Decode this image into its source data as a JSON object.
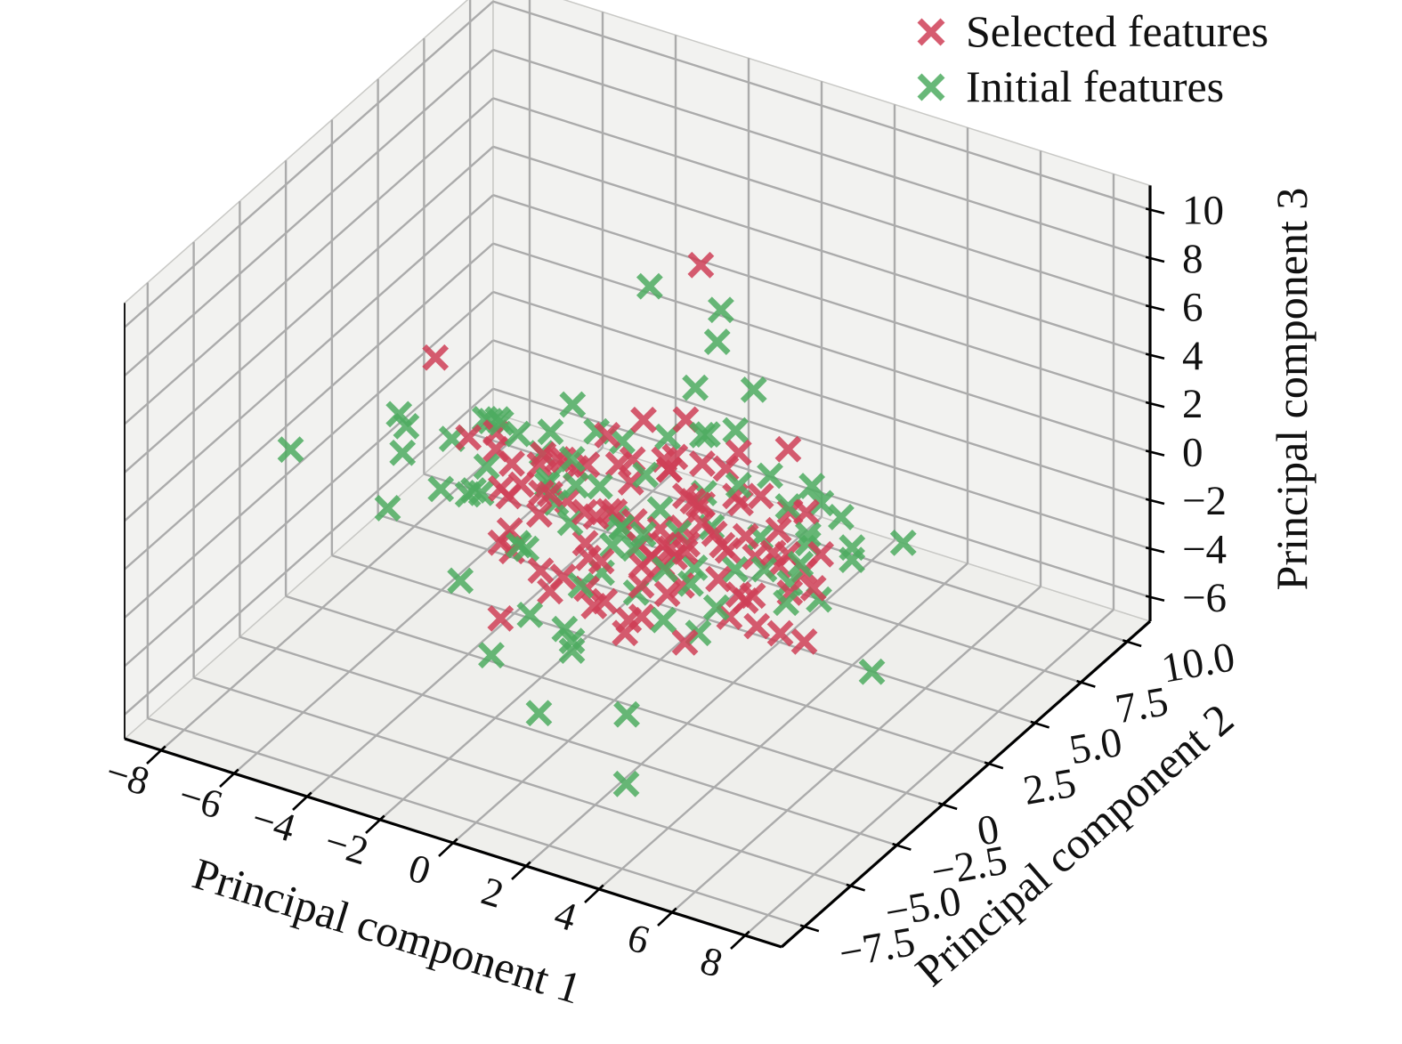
{
  "figure": {
    "background": "#ffffff"
  },
  "chart_data": {
    "type": "scatter",
    "projection": "3d",
    "title": "",
    "xlabel": "Principal component 1",
    "ylabel": "Principal component 2",
    "zlabel": "Principal component 3",
    "xlim": [
      -9,
      9
    ],
    "ylim": [
      -8.75,
      11.25
    ],
    "zlim": [
      -7,
      11
    ],
    "grid": true,
    "legend_position": "upper right",
    "xticks": {
      "values": [
        -8,
        -6,
        -4,
        -2,
        0,
        2,
        4,
        6,
        8
      ],
      "labels": [
        "−8",
        "−6",
        "−4",
        "−2",
        "0",
        "2",
        "4",
        "6",
        "8"
      ]
    },
    "yticks": {
      "values": [
        -7.5,
        -5,
        -2.5,
        0,
        2.5,
        5,
        7.5,
        10
      ],
      "labels": [
        "−7.5",
        "−5.0",
        "−2.5",
        "0",
        "2.5",
        "5.0",
        "7.5",
        "10.0"
      ]
    },
    "zticks": {
      "values": [
        -6,
        -4,
        -2,
        0,
        2,
        4,
        6,
        8,
        10
      ],
      "labels": [
        "−6",
        "−4",
        "−2",
        "0",
        "2",
        "4",
        "6",
        "8",
        "10"
      ]
    },
    "style": {
      "pane_wall": "#f2f2f0",
      "pane_floor": "#efefec",
      "pane_edge": "#c9c9c6",
      "grid_color": "#ababab",
      "spine_color": "#000000",
      "marker": "x-marker",
      "marker_opacity": 0.85
    },
    "series": [
      {
        "name": "Selected features",
        "color": "#cf3f57",
        "marker": "x-marker",
        "points": [
          [
            0.3,
            0.5,
            0.2
          ],
          [
            1.1,
            -0.8,
            0.5
          ],
          [
            -0.6,
            1.2,
            -0.3
          ],
          [
            2.2,
            0.4,
            1.1
          ],
          [
            -1.5,
            -1.1,
            0.7
          ],
          [
            0.8,
            2.1,
            -0.9
          ],
          [
            1.9,
            -2.3,
            0.2
          ],
          [
            -2.4,
            0.9,
            1.4
          ],
          [
            3.1,
            1.5,
            -0.6
          ],
          [
            0.1,
            -1.7,
            -1.2
          ],
          [
            -0.9,
            0.3,
            2.1
          ],
          [
            2.6,
            2.8,
            0.8
          ],
          [
            1.4,
            0.1,
            -2.0
          ],
          [
            -1.8,
            -2.6,
            0.4
          ],
          [
            0.6,
            1.8,
            1.6
          ],
          [
            3.8,
            -0.4,
            -0.8
          ],
          [
            -0.2,
            -0.6,
            0.9
          ],
          [
            1.7,
            3.2,
            0.1
          ],
          [
            2.9,
            -1.9,
            1.8
          ],
          [
            -3.2,
            0.6,
            -0.5
          ],
          [
            0.9,
            0.8,
            -1.5
          ],
          [
            4.2,
            1.1,
            0.3
          ],
          [
            -1.1,
            2.4,
            0.6
          ],
          [
            1.3,
            -3.1,
            -0.2
          ],
          [
            2.1,
            1.9,
            2.3
          ],
          [
            -2.7,
            -0.8,
            1.0
          ],
          [
            0.4,
            0.2,
            3.0
          ],
          [
            3.4,
            2.2,
            -1.3
          ],
          [
            -0.7,
            -2.1,
            2.6
          ],
          [
            1.6,
            1.4,
            0.9
          ],
          [
            5.1,
            0.7,
            -0.4
          ],
          [
            -1.3,
            1.0,
            -1.8
          ],
          [
            2.4,
            -0.9,
            3.2
          ],
          [
            0.2,
            2.9,
            1.2
          ],
          [
            -2.1,
            -1.4,
            -0.9
          ],
          [
            3.6,
            0.0,
            1.5
          ],
          [
            1.0,
            -1.2,
            -2.4
          ],
          [
            -0.4,
            3.5,
            0.4
          ],
          [
            2.8,
            1.2,
            -2.1
          ],
          [
            4.6,
            -1.6,
            0.6
          ],
          [
            -1.6,
            0.4,
            1.9
          ],
          [
            0.7,
            -2.8,
            1.1
          ],
          [
            3.0,
            3.6,
            -0.2
          ],
          [
            -2.9,
            1.7,
            0.2
          ],
          [
            1.2,
            0.6,
            2.7
          ],
          [
            2.0,
            -0.3,
            -1.1
          ],
          [
            -0.8,
            -1.9,
            -1.6
          ],
          [
            4.0,
            2.5,
            1.0
          ],
          [
            0.5,
            1.5,
            -0.7
          ],
          [
            -1.9,
            -0.2,
            0.8
          ],
          [
            2.5,
            0.9,
            0.0
          ],
          [
            1.8,
            2.6,
            -1.7
          ],
          [
            -0.3,
            -3.4,
            0.5
          ],
          [
            3.3,
            -1.1,
            2.2
          ],
          [
            0.0,
            0.9,
            1.4
          ],
          [
            -2.3,
            2.0,
            -1.2
          ],
          [
            1.5,
            -1.5,
            0.3
          ],
          [
            2.7,
            0.3,
            -0.9
          ],
          [
            -1.0,
            1.6,
            2.4
          ],
          [
            3.9,
            1.8,
            -1.9
          ],
          [
            0.8,
            -0.1,
            -3.1
          ],
          [
            -1.4,
            -2.9,
            1.3
          ],
          [
            2.3,
            2.3,
            0.7
          ],
          [
            1.1,
            1.1,
            -1.3
          ],
          [
            -0.5,
            0.7,
            0.1
          ],
          [
            4.4,
            0.2,
            2.0
          ],
          [
            -2.0,
            -1.6,
            2.9
          ],
          [
            0.9,
            3.0,
            -0.5
          ],
          [
            3.2,
            -2.5,
            -1.4
          ],
          [
            1.9,
            0.5,
            1.8
          ],
          [
            -1.2,
            -0.4,
            -2.2
          ],
          [
            2.6,
            1.6,
            3.4
          ],
          [
            0.3,
            -2.2,
            2.4
          ],
          [
            -2.6,
            0.1,
            0.6
          ],
          [
            4.2,
            0.3,
            0.9
          ],
          [
            1.7,
            -0.7,
            0.7
          ],
          [
            -0.1,
            2.2,
            -2.6
          ],
          [
            3.5,
            0.8,
            -2.8
          ],
          [
            2.2,
            -1.3,
            1.2
          ],
          [
            0.6,
            0.4,
            4.6
          ],
          [
            -1.7,
            1.3,
            0.9
          ],
          [
            4.8,
            -0.5,
            -1.6
          ],
          [
            1.4,
            2.0,
            2.1
          ],
          [
            0.1,
            -0.9,
            -0.6
          ],
          [
            2.0,
            0.0,
            0.4
          ],
          [
            1.0,
            1.9,
            3.8
          ],
          [
            -0.9,
            -1.3,
            3.4
          ],
          [
            0.1,
            4.5,
            8.0
          ],
          [
            -4.8,
            -0.2,
            5.0
          ],
          [
            3.3,
            2.9,
            3.0
          ],
          [
            4.7,
            1.9,
            0.0
          ],
          [
            4.2,
            2.0,
            -1.0
          ],
          [
            4.7,
            1.0,
            -3.0
          ],
          [
            2.9,
            0.5,
            -2.5
          ],
          [
            0.2,
            -1.5,
            -2.0
          ],
          [
            1.0,
            -1.4,
            -2.8
          ],
          [
            -1.4,
            -3.4,
            -2.0
          ],
          [
            -3.8,
            1.1,
            1.5
          ],
          [
            -3.7,
            0.9,
            1.0
          ],
          [
            -4.3,
            0.6,
            1.4
          ]
        ]
      },
      {
        "name": "Initial features",
        "color": "#4dac60",
        "marker": "x-marker",
        "points": [
          [
            -2.2,
            0.8,
            0.5
          ],
          [
            -3.1,
            -1.5,
            1.2
          ],
          [
            0.9,
            1.7,
            -0.8
          ],
          [
            -1.8,
            2.6,
            1.5
          ],
          [
            2.4,
            -2.0,
            0.9
          ],
          [
            -0.6,
            -0.9,
            2.2
          ],
          [
            1.1,
            3.1,
            -1.4
          ],
          [
            -2.8,
            1.9,
            -0.7
          ],
          [
            3.7,
            0.6,
            1.1
          ],
          [
            -1.2,
            -2.4,
            0.3
          ],
          [
            0.4,
            0.9,
            1.9
          ],
          [
            -3.6,
            0.2,
            0.8
          ],
          [
            2.1,
            2.4,
            -2.2
          ],
          [
            -0.9,
            1.1,
            -2.9
          ],
          [
            1.6,
            -1.6,
            1.7
          ],
          [
            -2.5,
            -0.3,
            -1.5
          ],
          [
            4.3,
            2.0,
            0.2
          ],
          [
            -1.5,
            3.4,
            0.7
          ],
          [
            0.8,
            -0.4,
            -1.9
          ],
          [
            -3.9,
            1.4,
            1.8
          ],
          [
            2.9,
            1.0,
            2.6
          ],
          [
            -0.3,
            -1.8,
            1.4
          ],
          [
            1.3,
            2.2,
            3.1
          ],
          [
            -2.0,
            0.5,
            2.8
          ],
          [
            3.2,
            -0.8,
            -1.1
          ],
          [
            -1.1,
            -3.0,
            0.9
          ],
          [
            0.6,
            1.3,
            0.3
          ],
          [
            -4.4,
            -0.7,
            0.1
          ],
          [
            2.6,
            3.3,
            1.3
          ],
          [
            -0.8,
            2.0,
            -1.6
          ],
          [
            1.9,
            -2.7,
            2.0
          ],
          [
            -2.9,
            -2.2,
            1.6
          ],
          [
            4.9,
            0.4,
            0.7
          ],
          [
            -1.6,
            0.0,
            0.4
          ],
          [
            0.2,
            2.5,
            2.3
          ],
          [
            -3.4,
            2.8,
            -0.3
          ],
          [
            2.2,
            0.2,
            -3.3
          ],
          [
            -0.5,
            -1.3,
            3.6
          ],
          [
            1.5,
            1.9,
            1.0
          ],
          [
            -2.3,
            -3.8,
            -0.6
          ],
          [
            3.4,
            1.4,
            -0.9
          ],
          [
            -1.9,
            1.5,
            3.3
          ],
          [
            0.9,
            -3.6,
            0.6
          ],
          [
            -4.1,
            0.9,
            -1.0
          ],
          [
            2.8,
            -1.4,
            0.1
          ],
          [
            -0.2,
            0.3,
            -0.9
          ],
          [
            1.2,
            4.2,
            1.9
          ],
          [
            -3.0,
            0.7,
            2.1
          ],
          [
            0.5,
            -0.6,
            0.8
          ],
          [
            -1.4,
            2.9,
            -2.1
          ],
          [
            2.0,
            1.1,
            4.2
          ],
          [
            -2.6,
            -1.0,
            3.9
          ],
          [
            3.9,
            3.0,
            1.7
          ],
          [
            -0.7,
            0.6,
            1.1
          ],
          [
            1.8,
            0.8,
            -1.2
          ],
          [
            5.4,
            2.2,
            -0.1
          ],
          [
            -5.2,
            -2.0,
            -0.2
          ],
          [
            0.3,
            3.8,
            3.5
          ],
          [
            -1.0,
            3.9,
            7.0
          ],
          [
            0.7,
            4.4,
            6.5
          ],
          [
            0.8,
            4.0,
            5.5
          ],
          [
            1.8,
            4.0,
            4.0
          ],
          [
            -7.0,
            -3.7,
            2.5
          ],
          [
            2.7,
            -4.7,
            -6.0
          ],
          [
            -0.4,
            -3.3,
            -5.5
          ],
          [
            1.4,
            -2.1,
            -5.5
          ],
          [
            6.2,
            1.7,
            -4.0
          ],
          [
            3.5,
            2.5,
            1.0
          ],
          [
            4.2,
            2.9,
            1.2
          ],
          [
            4.7,
            3.0,
            0.8
          ],
          [
            4.0,
            2.6,
            0.0
          ],
          [
            4.9,
            3.2,
            -0.5
          ],
          [
            6.1,
            3.6,
            0.0
          ],
          [
            3.9,
            1.8,
            -1.5
          ],
          [
            4.0,
            1.4,
            -2.0
          ],
          [
            4.7,
            1.8,
            -1.8
          ],
          [
            -1.0,
            -2.6,
            -2.2
          ],
          [
            1.7,
            -0.7,
            -2.4
          ],
          [
            -0.2,
            -2.3,
            -2.6
          ],
          [
            0.0,
            -2.3,
            -3.0
          ],
          [
            0.0,
            -2.3,
            -3.4
          ],
          [
            -1.3,
            -4.1,
            -3.0
          ],
          [
            -5.9,
            0.0,
            2.0
          ],
          [
            -5.7,
            0.0,
            1.6
          ],
          [
            -5.5,
            -0.6,
            1.0
          ],
          [
            -4.6,
            0.3,
            1.4
          ],
          [
            -3.9,
            1.0,
            2.0
          ],
          [
            -4.0,
            0.9,
            2.1
          ]
        ]
      }
    ]
  }
}
